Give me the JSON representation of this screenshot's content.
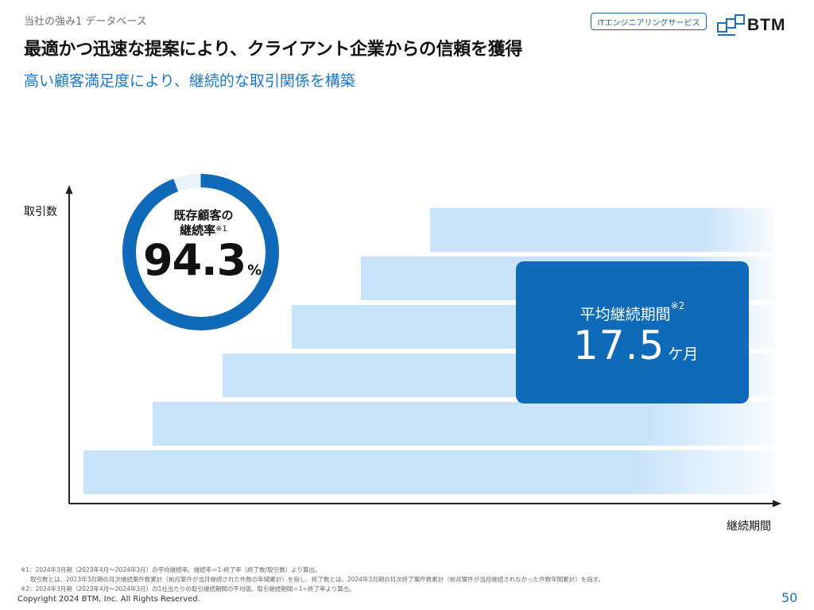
{
  "header": {
    "section_label": "当社の強み1  データベース",
    "title": "最適かつ迅速な提案により、クライアント企業からの信頼を獲得",
    "subtitle": "高い顧客満足度により、継続的な取引関係を構築",
    "service_badge": "ITエンジニアリングサービス",
    "logo_text": "BTM"
  },
  "chart": {
    "y_axis_label": "取引数",
    "x_axis_label": "継続期間",
    "bar_count": 6
  },
  "retention": {
    "label_line1": "既存顧客の",
    "label_line2": "継続率",
    "note_mark": "※1",
    "value": "94.3",
    "unit": "%",
    "ratio": 0.943
  },
  "duration": {
    "label": "平均継続期間",
    "note_mark": "※2",
    "value": "17.5",
    "unit": "ケ月"
  },
  "footnotes": {
    "note1": "※1：2024年3月期（2023年4月～2024年3月）の平均継続率。継続率＝1-終了率（終了数/取引数）より算出。",
    "note1_detail": "取引数とは、2023年3月期の月次継続案件数累計（前月案件が当月継続された件数の年間累計）を指し、終了数とは、2024年3月期の月次終了案件数累計（前月案件が当月継続されなかった件数年間累計）を指す。",
    "note2": "※2：2024年3月期（2023年4月～2024年3月）の1社当たりの取引継続期間の平均値。取引継続期間＝1÷終了率より算出。"
  },
  "footer": {
    "copyright": "Copyright 2024 BTM, Inc. All Rights Reserved.",
    "page_number": "50"
  },
  "colors": {
    "accent_blue": "#0f6bb9",
    "subtitle_blue": "#1a77c9",
    "bar_light_blue": "#c9e4fa"
  }
}
